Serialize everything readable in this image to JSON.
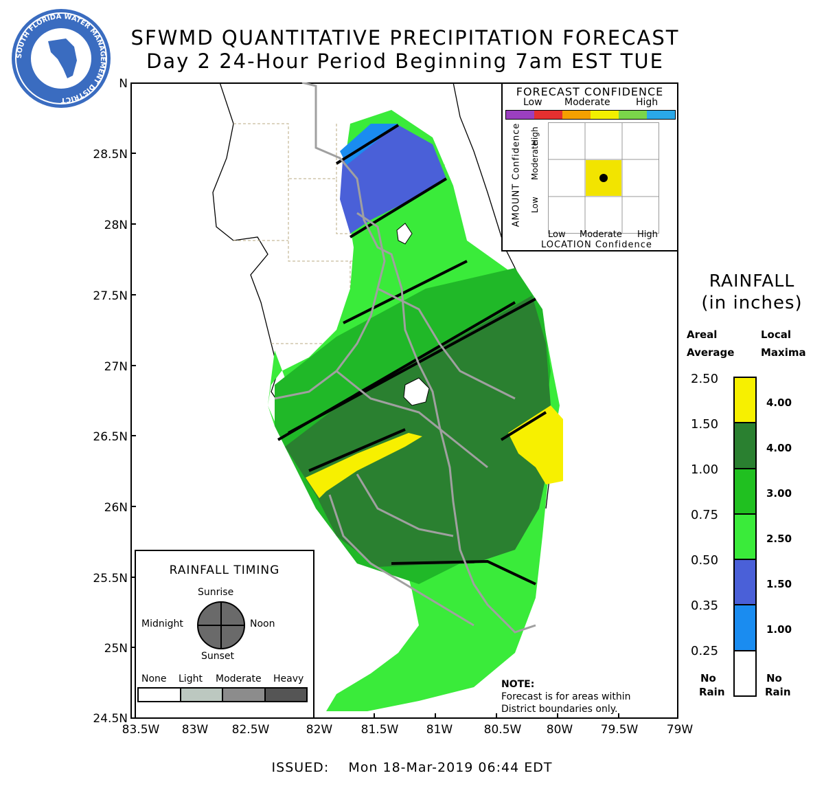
{
  "header": {
    "title_line1": "SFWMD QUANTITATIVE PRECIPITATION FORECAST",
    "title_line2": "Day 2 24-Hour Period Beginning 7am EST TUE"
  },
  "logo": {
    "text": "SOUTH FLORIDA WATER MANAGEMENT DISTRICT"
  },
  "axes": {
    "y_labels": [
      "N",
      "28.5N",
      "28N",
      "27.5N",
      "27N",
      "26.5N",
      "26N",
      "25.5N",
      "25N",
      "24.5N"
    ],
    "x_labels": [
      "83.5W",
      "83W",
      "82.5W",
      "82W",
      "81.5W",
      "81W",
      "80.5W",
      "80W",
      "79.5W",
      "79W"
    ]
  },
  "confidence": {
    "title": "FORECAST CONFIDENCE",
    "scale_labels": [
      "Low",
      "Moderate",
      "High"
    ],
    "scale_colors": [
      "#9b3fbf",
      "#e53030",
      "#f5a000",
      "#f2f000",
      "#7bd54a",
      "#2aa8e8"
    ],
    "y_axis_title": "AMOUNT Confidence",
    "y_levels": [
      "Low",
      "Moderate",
      "High"
    ],
    "x_levels": [
      "Low",
      "Moderate",
      "High"
    ],
    "x_axis_title": "LOCATION Confidence",
    "selected_amount": "Moderate",
    "selected_location": "Moderate",
    "selected_color": "#f2e400"
  },
  "rainfall_legend": {
    "title_line1": "RAINFALL",
    "title_line2": "(in inches)",
    "areal_hdr_1": "Areal",
    "areal_hdr_2": "Average",
    "local_hdr_1": "Local",
    "local_hdr_2": "Maxima",
    "areal_values": [
      "2.50",
      "1.50",
      "1.00",
      "0.75",
      "0.50",
      "0.35",
      "0.25"
    ],
    "local_values": [
      "4.00",
      "4.00",
      "3.00",
      "2.50",
      "1.50",
      "1.00"
    ],
    "colors": [
      "#f7f000",
      "#2a8030",
      "#20c020",
      "#3aeb3a",
      "#4a60d8",
      "#1a8cf0",
      "#ffffff"
    ],
    "no_rain_left_1": "No",
    "no_rain_left_2": "Rain",
    "no_rain_right_1": "No",
    "no_rain_right_2": "Rain"
  },
  "timing": {
    "title": "RAINFALL TIMING",
    "sunrise": "Sunrise",
    "noon": "Noon",
    "sunset": "Sunset",
    "midnight": "Midnight",
    "scale_labels": [
      "None",
      "Light",
      "Moderate",
      "Heavy"
    ],
    "scale_colors": [
      "#ffffff",
      "#bcc8c0",
      "#8c8c8c",
      "#555555"
    ]
  },
  "note": {
    "label": "NOTE:",
    "line1": "Forecast is for areas within",
    "line2": "District boundaries only."
  },
  "map_colors": {
    "yellow": "#f7f000",
    "dark_green": "#2a8030",
    "medium_green": "#20b828",
    "light_green": "#3aeb3a",
    "purple_blue": "#4a60d8",
    "light_blue": "#1a8cf0",
    "boundary_gray": "#a0a0a0"
  },
  "footer": {
    "issued_label": "ISSUED:",
    "issued_value": "Mon 18-Mar-2019 06:44 EDT"
  }
}
